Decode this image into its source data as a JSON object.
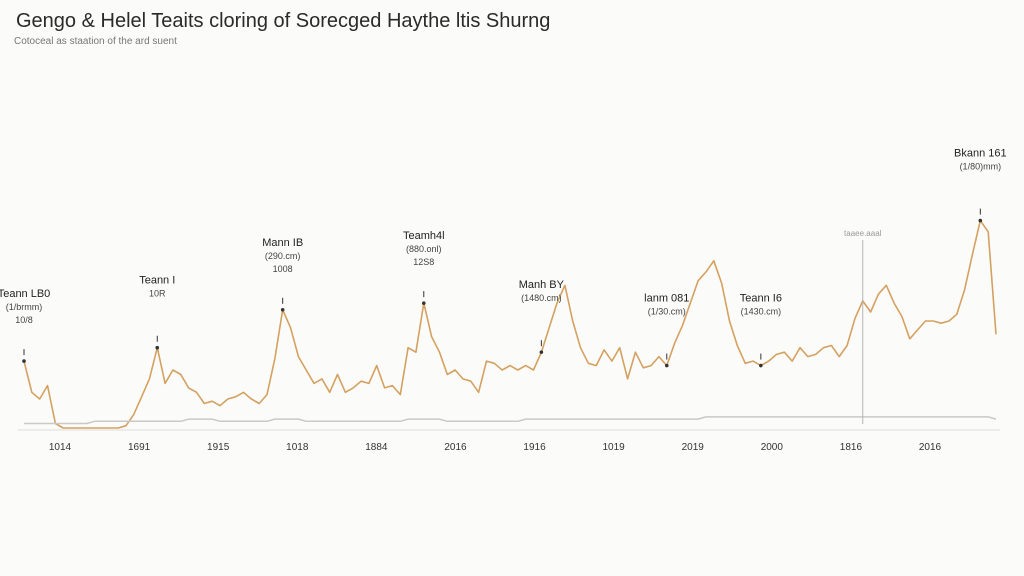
{
  "title": "Gengo & Helel Teaits cloring of Sorecged Haythe ltis Shurng",
  "subtitle": "Cotoceal as staation of the ard suent",
  "colors": {
    "line": "#d4a160",
    "baseline": "#c9c9c9",
    "axis": "#dcdcdc",
    "marker": "#b5b5b5"
  },
  "chart_data": {
    "type": "line",
    "xlabel": "",
    "ylabel": "",
    "tick_labels": [
      "1014",
      "1691",
      "1915",
      "1018",
      "1884",
      "2016",
      "1916",
      "1019",
      "2019",
      "2000",
      "1816",
      "2016"
    ],
    "ylim": [
      0,
      100
    ],
    "grid": false,
    "series": [
      {
        "name": "",
        "values": [
          30,
          16,
          13,
          19,
          2,
          0,
          0,
          0,
          0,
          0,
          0,
          0,
          0,
          1,
          6,
          14,
          22,
          36,
          20,
          26,
          24,
          18,
          16,
          11,
          12,
          10,
          13,
          14,
          16,
          13,
          11,
          15,
          31,
          53,
          45,
          32,
          26,
          20,
          22,
          16,
          24,
          16,
          18,
          21,
          20,
          28,
          18,
          19,
          15,
          36,
          34,
          56,
          41,
          34,
          24,
          26,
          22,
          21,
          16,
          30,
          29,
          26,
          28,
          26,
          28,
          26,
          34,
          45,
          56,
          64,
          48,
          36,
          29,
          28,
          35,
          30,
          36,
          22,
          34,
          27,
          28,
          32,
          28,
          38,
          46,
          56,
          66,
          70,
          75,
          65,
          48,
          37,
          29,
          30,
          28,
          30,
          33,
          34,
          30,
          36,
          32,
          33,
          36,
          37,
          32,
          37,
          49,
          57,
          52,
          60,
          64,
          56,
          50,
          40,
          44,
          48,
          48,
          47,
          48,
          51,
          62,
          78,
          93,
          88,
          42
        ]
      },
      {
        "name": "",
        "values": [
          2,
          2,
          2,
          2,
          2,
          2,
          2,
          2,
          2,
          3,
          3,
          3,
          3,
          3,
          3,
          3,
          3,
          3,
          3,
          3,
          3,
          4,
          4,
          4,
          4,
          3,
          3,
          3,
          3,
          3,
          3,
          3,
          4,
          4,
          4,
          4,
          3,
          3,
          3,
          3,
          3,
          3,
          3,
          3,
          3,
          3,
          3,
          3,
          3,
          4,
          4,
          4,
          4,
          4,
          3,
          3,
          3,
          3,
          3,
          3,
          3,
          3,
          3,
          3,
          4,
          4,
          4,
          4,
          4,
          4,
          4,
          4,
          4,
          4,
          4,
          4,
          4,
          4,
          4,
          4,
          4,
          4,
          4,
          4,
          4,
          4,
          4,
          5,
          5,
          5,
          5,
          5,
          5,
          5,
          5,
          5,
          5,
          5,
          5,
          5,
          5,
          5,
          5,
          5,
          5,
          5,
          5,
          5,
          5,
          5,
          5,
          5,
          5,
          5,
          5,
          5,
          5,
          5,
          5,
          5,
          5,
          5,
          5,
          5,
          4
        ]
      }
    ],
    "annotations": [
      {
        "name": "Teann LB0",
        "sub": "(1/brmm)",
        "val": "10/8",
        "x_index": 0
      },
      {
        "name": "Teann I",
        "sub": "10R",
        "val": "",
        "x_index": 17
      },
      {
        "name": "Mann IB",
        "sub": "(290.cm)",
        "val": "1008",
        "x_index": 33
      },
      {
        "name": "Teamh4l",
        "sub": "(880.onl)",
        "val": "12S8",
        "x_index": 51
      },
      {
        "name": "Manh BY",
        "sub": "(1480.cm)",
        "val": "",
        "x_index": 66
      },
      {
        "name": "lanm 081",
        "sub": "(1/30.cm)",
        "val": "",
        "x_index": 82
      },
      {
        "name": "Teann I6",
        "sub": "(1430.cm)",
        "val": "",
        "x_index": 94
      },
      {
        "name": "Bkann 161",
        "sub": "(1/80)mm)",
        "val": "",
        "x_index": 122
      }
    ],
    "vertical_marker": {
      "x_index": 107,
      "label": "taaee.aaal"
    }
  }
}
